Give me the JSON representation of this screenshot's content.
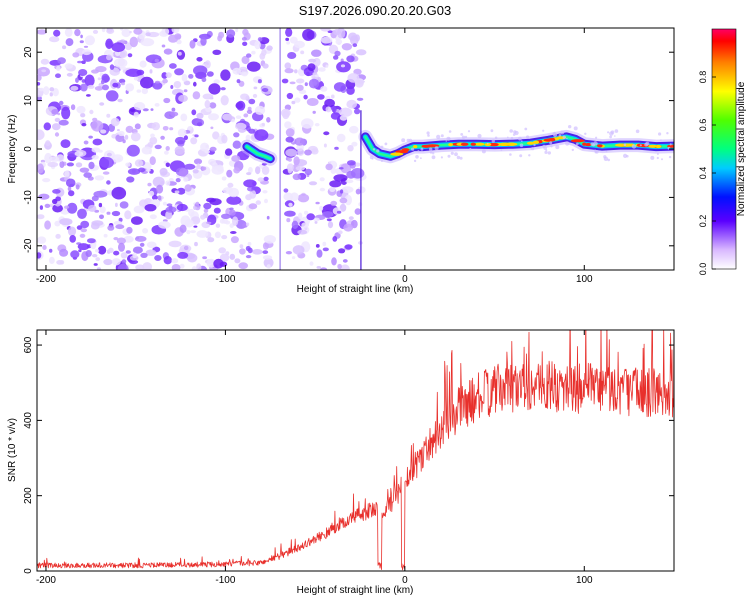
{
  "title": "S197.2026.090.20.20.G03",
  "chart_data": [
    {
      "type": "heatmap",
      "name": "spectrogram",
      "xlabel": "Height of straight line (km)",
      "ylabel": "Frequency (Hz)",
      "xlim": [
        -205,
        150
      ],
      "ylim": [
        -25,
        25
      ],
      "xticks": [
        -200,
        -100,
        0,
        100
      ],
      "yticks": [
        -20,
        -10,
        0,
        10,
        20
      ],
      "gaps_km": [
        [
          -75,
          -67
        ],
        [
          -24,
          -20
        ]
      ],
      "noise_regions_km": [
        [
          -205,
          -75
        ],
        [
          -67,
          -24
        ]
      ],
      "signal_track": {
        "x": [
          -88,
          -82,
          -78,
          -75,
          -22,
          -18,
          -14,
          -8,
          -4,
          0,
          5,
          10,
          20,
          30,
          40,
          50,
          60,
          70,
          80,
          90,
          95,
          100,
          110,
          120,
          130,
          140,
          150
        ],
        "y": [
          0.5,
          -1.0,
          -1.5,
          -2.0,
          2.5,
          0.0,
          -1.0,
          -1.5,
          -1.0,
          -0.2,
          0.5,
          0.5,
          0.8,
          1.0,
          1.0,
          0.9,
          1.0,
          1.2,
          1.8,
          2.5,
          2.0,
          1.0,
          0.6,
          0.8,
          0.8,
          0.5,
          0.6
        ]
      },
      "colorbar": {
        "label": "Normalized spectral amplitude",
        "range": [
          0.0,
          1.0
        ],
        "ticks": [
          "0.0",
          "0.2",
          "0.4",
          "0.6",
          "0.8"
        ],
        "tick_values": [
          0.0,
          0.2,
          0.4,
          0.6,
          0.8
        ]
      }
    },
    {
      "type": "line",
      "name": "snr",
      "xlabel": "Height of straight line (km)",
      "ylabel": "SNR (10 * v/v)",
      "xlim": [
        -205,
        150
      ],
      "ylim": [
        0,
        640
      ],
      "xticks": [
        -200,
        -100,
        0,
        100
      ],
      "yticks": [
        0,
        200,
        400,
        600
      ],
      "color": "#e8302c",
      "envelope": {
        "x": [
          -205,
          -150,
          -100,
          -80,
          -70,
          -60,
          -50,
          -40,
          -30,
          -20,
          -15,
          -12,
          -10,
          -5,
          0,
          10,
          20,
          30,
          40,
          50,
          60,
          80,
          100,
          120,
          140,
          150
        ],
        "y": [
          15,
          15,
          18,
          22,
          40,
          60,
          85,
          110,
          140,
          160,
          160,
          140,
          175,
          190,
          240,
          310,
          380,
          430,
          460,
          480,
          490,
          490,
          485,
          480,
          475,
          470
        ]
      },
      "dropouts_km": [
        [
          -15,
          -13
        ],
        [
          -2,
          0
        ]
      ]
    }
  ]
}
